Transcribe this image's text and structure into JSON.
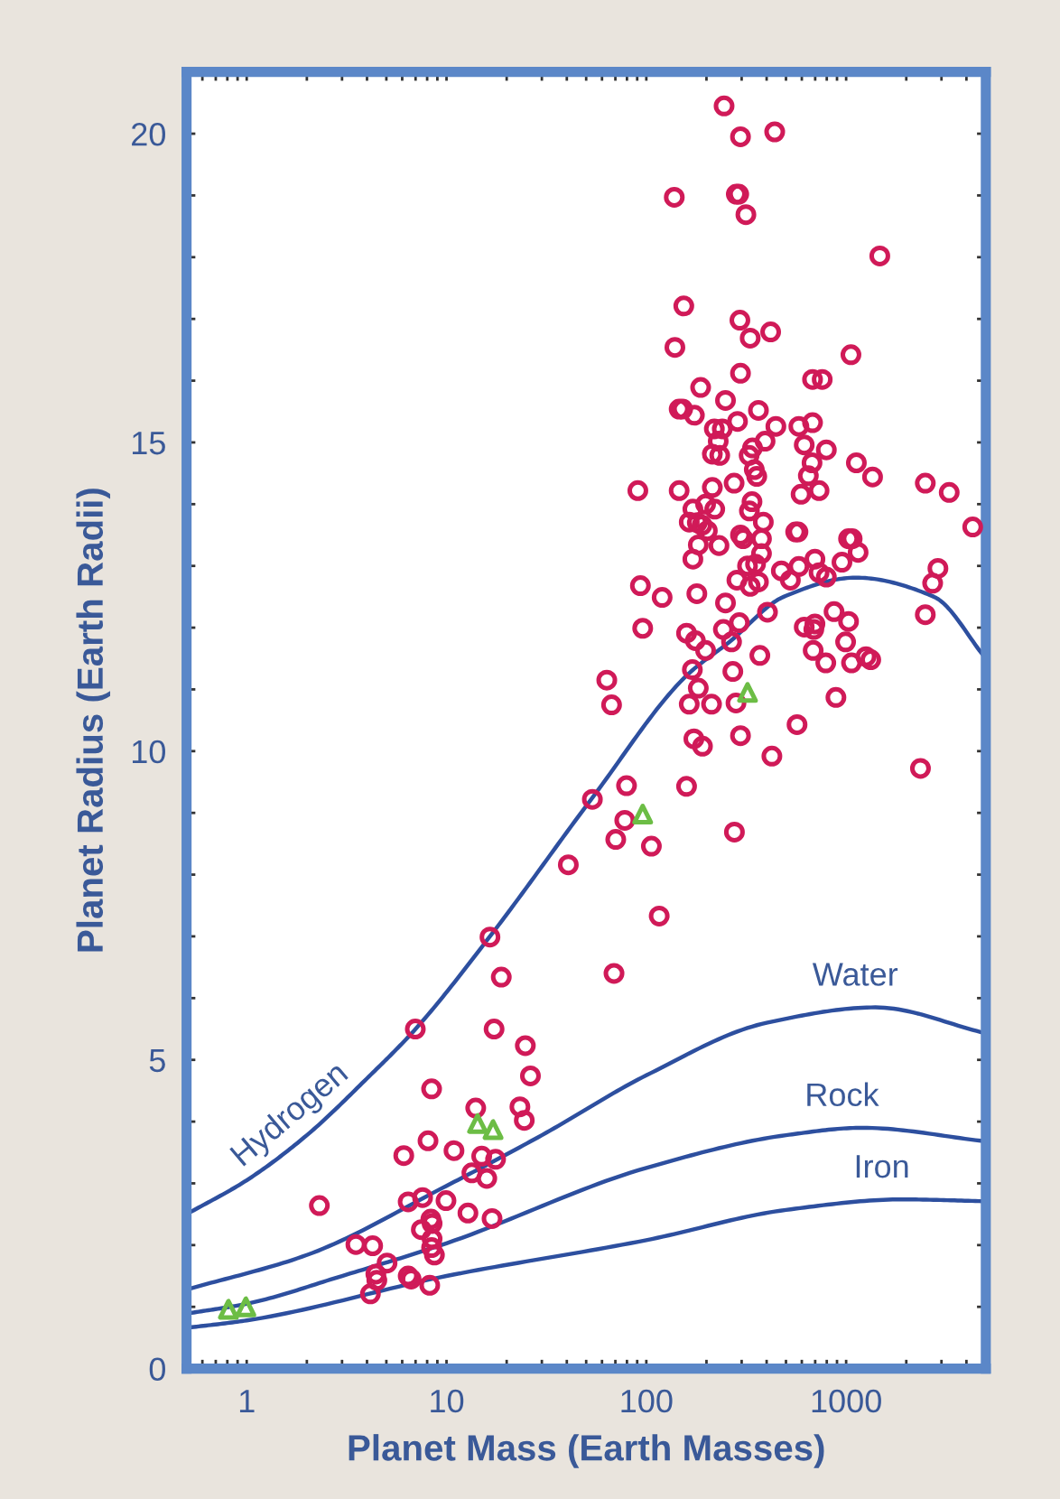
{
  "chart_data": {
    "type": "scatter",
    "xlabel": "Planet Mass (Earth Masses)",
    "ylabel": "Planet Radius (Earth Radii)",
    "log": "x",
    "grid": false,
    "legend": false,
    "xlim": [
      0.5,
      5000
    ],
    "ylim": [
      0,
      21
    ],
    "xticks": [
      {
        "value": 0.6,
        "label": null
      },
      {
        "value": 0.7,
        "label": null
      },
      {
        "value": 0.8,
        "label": null
      },
      {
        "value": 0.9,
        "label": null
      },
      1,
      {
        "value": 2,
        "label": null
      },
      {
        "value": 3,
        "label": null
      },
      {
        "value": 4,
        "label": null
      },
      {
        "value": 5,
        "label": null
      },
      {
        "value": 6,
        "label": null
      },
      {
        "value": 7,
        "label": null
      },
      {
        "value": 8,
        "label": null
      },
      {
        "value": 9,
        "label": null
      },
      10,
      {
        "value": 20,
        "label": null
      },
      {
        "value": 30,
        "label": null
      },
      {
        "value": 40,
        "label": null
      },
      {
        "value": 50,
        "label": null
      },
      {
        "value": 60,
        "label": null
      },
      {
        "value": 70,
        "label": null
      },
      {
        "value": 80,
        "label": null
      },
      {
        "value": 90,
        "label": null
      },
      100,
      {
        "value": 200,
        "label": null
      },
      {
        "value": 300,
        "label": null
      },
      {
        "value": 400,
        "label": null
      },
      {
        "value": 500,
        "label": null
      },
      {
        "value": 600,
        "label": null
      },
      {
        "value": 700,
        "label": null
      },
      {
        "value": 800,
        "label": null
      },
      {
        "value": 900,
        "label": null
      },
      1000,
      {
        "value": 2000,
        "label": null
      },
      {
        "value": 3000,
        "label": null
      },
      {
        "value": 4000,
        "label": null
      }
    ],
    "yticks": [
      0,
      {
        "value": 1,
        "label": null
      },
      {
        "value": 2,
        "label": null
      },
      {
        "value": 3,
        "label": null
      },
      {
        "value": 4,
        "label": null
      },
      5,
      {
        "value": 6,
        "label": null
      },
      {
        "value": 7,
        "label": null
      },
      {
        "value": 8,
        "label": null
      },
      {
        "value": 9,
        "label": null
      },
      10,
      {
        "value": 11,
        "label": null
      },
      {
        "value": 12,
        "label": null
      },
      {
        "value": 13,
        "label": null
      },
      {
        "value": 14,
        "label": null
      },
      15,
      {
        "value": 16,
        "label": null
      },
      {
        "value": 17,
        "label": null
      },
      {
        "value": 18,
        "label": null
      },
      {
        "value": 19,
        "label": null
      },
      20
    ],
    "series": [
      {
        "type": "line",
        "name": "Hydrogen",
        "color": "#2d4f9f",
        "line_style": "solid",
        "marker": "none",
        "x": [
          0.5,
          1,
          2,
          4,
          7,
          16.5,
          53,
          161,
          261,
          487,
          1117,
          2750,
          5000
        ],
        "values": [
          2.5,
          3.05,
          3.78,
          4.7,
          5.5,
          7.0,
          9.22,
          11.24,
          11.77,
          12.5,
          12.81,
          12.5,
          11.5
        ]
      },
      {
        "type": "line",
        "name": "Water",
        "color": "#2d4f9f",
        "line_style": "solid",
        "marker": "none",
        "x": [
          0.5,
          2,
          10,
          30,
          100,
          400,
          1400,
          5000
        ],
        "values": [
          1.28,
          1.84,
          2.96,
          3.78,
          4.75,
          5.6,
          5.85,
          5.43
        ]
      },
      {
        "type": "line",
        "name": "Rock",
        "color": "#2d4f9f",
        "line_style": "solid",
        "marker": "none",
        "x": [
          0.5,
          1,
          3,
          10,
          100,
          500,
          1200,
          5000
        ],
        "values": [
          0.89,
          1.05,
          1.5,
          2.03,
          3.25,
          3.78,
          3.9,
          3.68
        ]
      },
      {
        "type": "line",
        "name": "Iron",
        "color": "#2d4f9f",
        "line_style": "solid",
        "marker": "none",
        "x": [
          0.5,
          1,
          10,
          100,
          500,
          1900,
          5000
        ],
        "values": [
          0.66,
          0.78,
          1.5,
          2.08,
          2.57,
          2.74,
          2.71
        ]
      },
      {
        "color": "#d01a58",
        "marker": "circle",
        "x": [
          245,
          296,
          439,
          138,
          282,
          290,
          315,
          1474,
          154,
          294,
          139,
          331,
          419,
          1057,
          296,
          187,
          679,
          759,
          249,
          146,
          152,
          174,
          364,
          286,
          445,
          219,
          240,
          580,
          679,
          229,
          393,
          617,
          340,
          327,
          214,
          233,
          796,
          675,
          1125,
          347,
          357,
          647,
          1356,
          90.7,
          146,
          214,
          275,
          595,
          732,
          2490,
          3280,
          338,
          198,
          171,
          220,
          328,
          385,
          164,
          180,
          190,
          202,
          4300,
          296,
          305,
          377,
          559,
          574,
          1028,
          1072,
          182,
          231,
          377,
          1148,
          171,
          698,
          321,
          352,
          953,
          2880,
          474,
          580,
          732,
          796,
          284,
          331,
          364,
          526,
          2710,
          93.4,
          120,
          179,
          249,
          404,
          870,
          2490,
          292,
          1028,
          95.9,
          243,
          159,
          617,
          698,
          689,
          176,
          267,
          994,
          370,
          791,
          1064,
          1257,
          1328,
          63.4,
          170,
          271,
          67.0,
          182,
          164,
          212,
          281,
          889,
          684,
          198,
          173,
          191,
          296,
          425,
          568,
          2355,
          53.7,
          79.6,
          159,
          78.0,
          70.3,
          106,
          276,
          40.7,
          116,
          16.5,
          18.8,
          68.9,
          6.98,
          17.3,
          24.8,
          26.3,
          8.42,
          14.0,
          23.3,
          24.5,
          8.08,
          6.11,
          10.9,
          15.0,
          17.6,
          2.31,
          6.43,
          7.59,
          9.94,
          13.4,
          15.9,
          12.8,
          16.9,
          8.35,
          8.47,
          7.48,
          8.47,
          8.42,
          8.7,
          3.52,
          4.27,
          5.04,
          4.43,
          4.48,
          6.43,
          6.65,
          4.16,
          8.24
        ],
        "values": [
          20.45,
          19.95,
          20.03,
          18.97,
          19.02,
          19.02,
          18.69,
          18.02,
          17.21,
          16.98,
          16.54,
          16.69,
          16.79,
          16.42,
          16.12,
          15.89,
          16.02,
          16.02,
          15.68,
          15.54,
          15.54,
          15.44,
          15.52,
          15.34,
          15.26,
          15.22,
          15.22,
          15.26,
          15.32,
          15.02,
          15.02,
          14.96,
          14.91,
          14.79,
          14.81,
          14.79,
          14.88,
          14.67,
          14.67,
          14.56,
          14.45,
          14.46,
          14.44,
          14.22,
          14.22,
          14.27,
          14.34,
          14.16,
          14.22,
          14.34,
          14.19,
          14.04,
          14.0,
          13.92,
          13.92,
          13.89,
          13.71,
          13.71,
          13.7,
          13.66,
          13.57,
          13.63,
          13.5,
          13.44,
          13.44,
          13.55,
          13.55,
          13.44,
          13.44,
          13.34,
          13.33,
          13.2,
          13.22,
          13.11,
          13.11,
          13.0,
          13.03,
          13.06,
          12.96,
          12.92,
          12.99,
          12.89,
          12.82,
          12.77,
          12.67,
          12.74,
          12.77,
          12.72,
          12.68,
          12.49,
          12.55,
          12.4,
          12.25,
          12.26,
          12.21,
          12.08,
          12.1,
          11.99,
          11.97,
          11.91,
          12.01,
          12.06,
          11.97,
          11.79,
          11.77,
          11.77,
          11.55,
          11.43,
          11.43,
          11.53,
          11.48,
          11.15,
          11.32,
          11.29,
          10.75,
          11.02,
          10.76,
          10.76,
          10.78,
          10.87,
          11.63,
          11.63,
          10.2,
          10.08,
          10.25,
          9.92,
          10.43,
          9.72,
          9.22,
          9.44,
          9.43,
          8.88,
          8.57,
          8.46,
          8.69,
          8.16,
          7.33,
          6.99,
          6.34,
          6.4,
          5.5,
          5.5,
          5.23,
          4.74,
          4.53,
          4.22,
          4.24,
          4.02,
          3.69,
          3.45,
          3.53,
          3.44,
          3.39,
          2.64,
          2.7,
          2.77,
          2.72,
          3.17,
          3.08,
          2.52,
          2.43,
          2.42,
          2.35,
          2.25,
          2.1,
          1.96,
          1.84,
          2.01,
          1.99,
          1.71,
          1.53,
          1.43,
          1.5,
          1.45,
          1.21,
          1.35
        ]
      },
      {
        "color": "#6cbd45",
        "marker": "triangle",
        "x": [
          0.81,
          0.99,
          14.3,
          17.1,
          95.9,
          321
        ],
        "values": [
          0.96,
          1.0,
          3.97,
          3.87,
          8.98,
          10.95
        ]
      }
    ]
  }
}
